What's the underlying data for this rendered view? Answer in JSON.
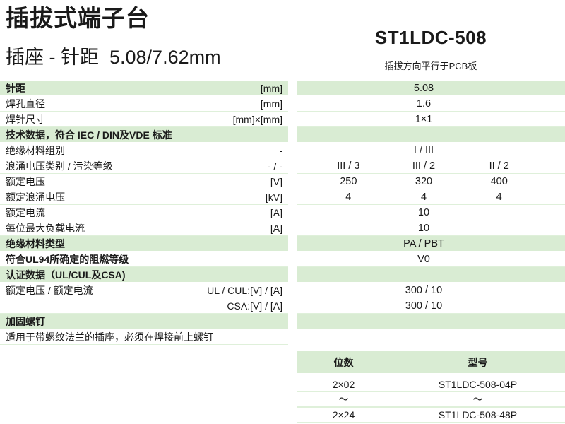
{
  "header": {
    "title": "插拔式端子台",
    "subtitle": "插座 - 针距  5.08/7.62mm",
    "model": "ST1LDC-508",
    "model_note": "插拔方向平行于PCB板"
  },
  "spec_table": {
    "rows": [
      {
        "label": "针距",
        "unit": "[mm]",
        "values": [
          "5.08"
        ],
        "green": true,
        "bold": true
      },
      {
        "label": "焊孔直径",
        "unit": "[mm]",
        "values": [
          "1.6"
        ]
      },
      {
        "label": "焊针尺寸",
        "unit": "[mm]×[mm]",
        "values": [
          "1×1"
        ]
      },
      {
        "label": "技术数据，符合 IEC / DIN及VDE 标准",
        "unit": "",
        "values": [],
        "green": true,
        "bold": true
      },
      {
        "label": "绝缘材料组别",
        "unit": "-",
        "values": [
          "I / III"
        ]
      },
      {
        "label": "浪涌电压类别 / 污染等级",
        "unit": "- / -",
        "values": [
          "III / 3",
          "III / 2",
          "II / 2"
        ]
      },
      {
        "label": "额定电压",
        "unit": "[V]",
        "values": [
          "250",
          "320",
          "400"
        ]
      },
      {
        "label": "额定浪涌电压",
        "unit": "[kV]",
        "values": [
          "4",
          "4",
          "4"
        ]
      },
      {
        "label": "额定电流",
        "unit": "[A]",
        "values": [
          "10"
        ]
      },
      {
        "label": "每位最大负载电流",
        "unit": "[A]",
        "values": [
          "10"
        ]
      },
      {
        "label": "绝缘材料类型",
        "unit": "",
        "values": [
          "PA / PBT"
        ],
        "green": true,
        "bold": true
      },
      {
        "label": "符合UL94所确定的阻燃等级",
        "unit": "",
        "values": [
          "V0"
        ],
        "bold": true
      },
      {
        "label": "认证数据（UL/CUL及CSA)",
        "unit": "",
        "values": [],
        "green": true,
        "bold": true
      },
      {
        "label": "额定电压 / 额定电流",
        "unit": "UL / CUL:[V] / [A]",
        "values": [
          "300 / 10"
        ]
      },
      {
        "label": "",
        "unit": "CSA:[V] / [A]",
        "values": [
          "300 / 10"
        ]
      },
      {
        "label": "加固螺钉",
        "unit": "",
        "values": [],
        "green": true,
        "bold": true
      },
      {
        "label": "适用于带螺纹法兰的插座，必须在焊接前上螺钉",
        "unit": "",
        "values": [],
        "note": true
      }
    ]
  },
  "order_table": {
    "headers": [
      "位数",
      "型号"
    ],
    "rows": [
      [
        "2×02",
        "ST1LDC-508-04P"
      ],
      [
        "〜",
        "〜"
      ],
      [
        "2×24",
        "ST1LDC-508-48P"
      ]
    ]
  },
  "colors": {
    "green": "#d9ecd3",
    "separator": "#dff0da",
    "text": "#1a1a1a"
  }
}
